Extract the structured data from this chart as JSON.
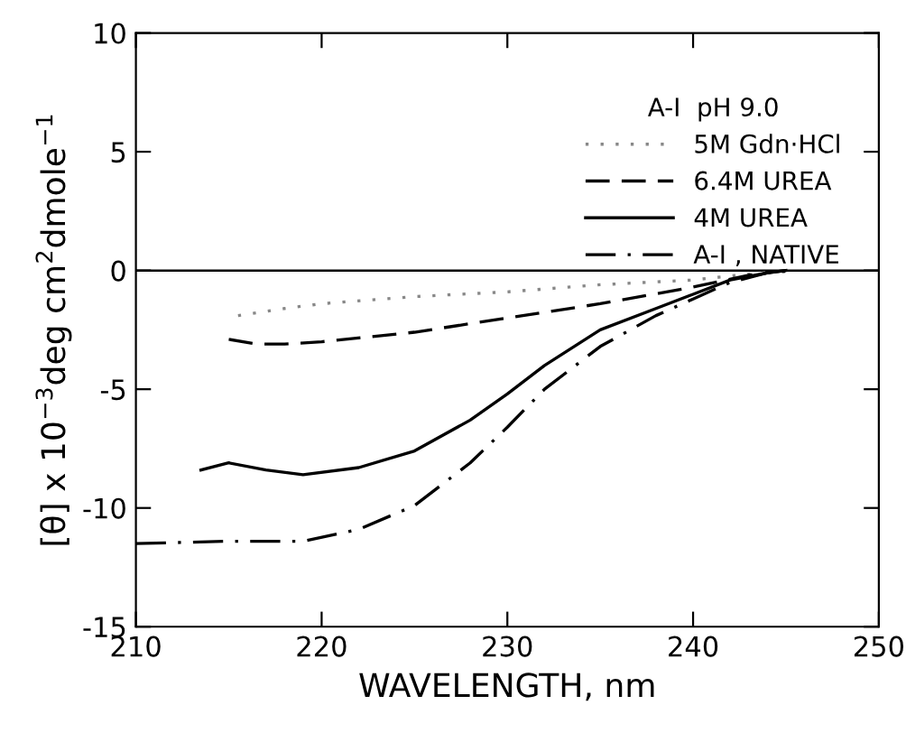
{
  "chart_data": {
    "type": "line",
    "xlabel": "WAVELENGTH, nm",
    "ylabel": "[θ] x 10$^{−3}$deg cm$^{2}$dmole$^{−1}$",
    "legend_title": "A-I  pH 9.0",
    "legend": "top right",
    "grid": false,
    "xlim": [
      210,
      250
    ],
    "xticks": [
      210,
      220,
      230,
      240,
      250
    ],
    "ylim": [
      -15,
      10
    ],
    "yticks": [
      -15,
      -10,
      -5,
      0,
      5,
      10
    ],
    "ref_lines": [
      {
        "axis": "y",
        "value": 0,
        "color": "#000000",
        "line_style": "solid"
      }
    ],
    "series": [
      {
        "name": "5M Gdn·HCl",
        "color": "#888888",
        "line_style": "dotted",
        "x": [
          215.5,
          218,
          220,
          225,
          230,
          235,
          240,
          243,
          245
        ],
        "values": [
          -1.9,
          -1.6,
          -1.4,
          -1.1,
          -0.9,
          -0.6,
          -0.4,
          -0.15,
          0
        ]
      },
      {
        "name": "6.4M UREA",
        "color": "#000000",
        "line_style": "dashed",
        "x": [
          215,
          216.5,
          218,
          220,
          225,
          230,
          235,
          240,
          243,
          245
        ],
        "values": [
          -2.9,
          -3.1,
          -3.1,
          -3.0,
          -2.6,
          -2.0,
          -1.4,
          -0.7,
          -0.2,
          0
        ]
      },
      {
        "name": "4M UREA",
        "color": "#000000",
        "line_style": "solid",
        "x": [
          213.5,
          215,
          217,
          219,
          222,
          225,
          228,
          230,
          232,
          235,
          238,
          240,
          242,
          244,
          245
        ],
        "values": [
          -8.4,
          -8.1,
          -8.4,
          -8.6,
          -8.3,
          -7.6,
          -6.3,
          -5.2,
          -4.0,
          -2.5,
          -1.6,
          -1.0,
          -0.4,
          -0.1,
          0
        ]
      },
      {
        "name": "A-I , NATIVE",
        "color": "#000000",
        "line_style": "dashdot",
        "x": [
          210,
          215,
          219,
          222,
          225,
          228,
          230,
          232,
          235,
          238,
          240,
          242,
          244,
          245.5
        ],
        "values": [
          -11.5,
          -11.4,
          -11.4,
          -10.9,
          -9.9,
          -8.1,
          -6.6,
          -5.0,
          -3.2,
          -1.9,
          -1.2,
          -0.5,
          -0.1,
          0
        ]
      }
    ]
  }
}
